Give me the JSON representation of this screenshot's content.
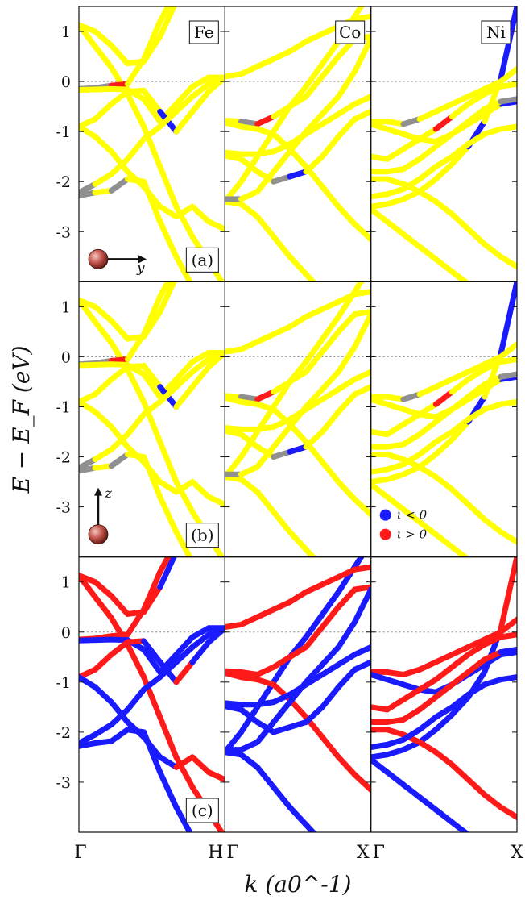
{
  "chart_data": {
    "type": "line",
    "ylabel": "E − E_F (eV)",
    "xlabel": "k (a0^-1)",
    "ylim": [
      -4,
      1.5
    ],
    "yticks": [
      1,
      0,
      -1,
      -2,
      -3
    ],
    "ytick_labels": [
      "1",
      "0",
      "-1",
      "-2",
      "-3"
    ],
    "fermi_level": 0,
    "legend": [
      {
        "label": "ι < 0",
        "color": "#1a1aff"
      },
      {
        "label": "ι > 0",
        "color": "#ff1a1a"
      }
    ],
    "colors": {
      "neutral": "#ffff00",
      "negative": "#1a1aff",
      "positive": "#ff1a1a",
      "gray": "#909090"
    },
    "columns": [
      {
        "element": "Fe",
        "k_start": "Γ",
        "k_end": "H"
      },
      {
        "element": "Co",
        "k_start": "Γ",
        "k_end": "X"
      },
      {
        "element": "Ni",
        "k_start": "Γ",
        "k_end": "X"
      }
    ],
    "rows": [
      {
        "panel": "(a)",
        "magnetization": "y",
        "mode": "texture"
      },
      {
        "panel": "(b)",
        "magnetization": "z",
        "mode": "texture"
      },
      {
        "panel": "(c)",
        "magnetization": "",
        "mode": "spin"
      }
    ],
    "bands": {
      "Fe": [
        {
          "y": [
            1.13,
            0.7,
            0.28,
            -0.25,
            -0.9,
            -1.7,
            -2.5,
            -3.1,
            -3.6,
            -4.1
          ],
          "c": [
            "y",
            "y",
            "y",
            "y",
            "y",
            "y",
            "y",
            "y",
            "y",
            "y"
          ],
          "s": [
            "r",
            "r",
            "r",
            "r",
            "r",
            "r",
            "r",
            "r",
            "r",
            "r"
          ]
        },
        {
          "y": [
            1.13,
            1.0,
            0.72,
            0.36,
            0.4,
            0.9,
            1.6,
            2.2,
            2.8,
            3.4
          ],
          "c": [
            "y",
            "y",
            "y",
            "y",
            "y",
            "y",
            "y",
            "y",
            "y",
            "y"
          ],
          "s": [
            "r",
            "r",
            "r",
            "r",
            "r",
            "b",
            "b",
            "b",
            "b",
            "b"
          ]
        },
        {
          "y": [
            -0.15,
            -0.13,
            -0.08,
            -0.05,
            0.45,
            1.2,
            1.8,
            2.4,
            2.9,
            3.4
          ],
          "c": [
            "g",
            "g",
            "r",
            "y",
            "y",
            "y",
            "y",
            "y",
            "y",
            "y"
          ],
          "s": [
            "r",
            "r",
            "r",
            "r",
            "r",
            "r",
            "r",
            "r",
            "r",
            "r"
          ]
        },
        {
          "y": [
            -0.17,
            -0.16,
            -0.15,
            -0.16,
            -0.35,
            -0.8,
            -0.45,
            -0.1,
            0.08,
            0.08
          ],
          "c": [
            "y",
            "y",
            "y",
            "y",
            "y",
            "y",
            "y",
            "y",
            "y",
            "y"
          ],
          "s": [
            "b",
            "b",
            "b",
            "b",
            "b",
            "b",
            "b",
            "b",
            "b",
            "b"
          ]
        },
        {
          "y": [
            -0.9,
            -0.75,
            -0.45,
            -0.2,
            -0.18,
            -0.6,
            -1.0,
            -0.6,
            -0.2,
            0.08
          ],
          "c": [
            "y",
            "y",
            "y",
            "y",
            "y",
            "b",
            "y",
            "y",
            "y",
            "y"
          ],
          "s": [
            "r",
            "r",
            "r",
            "r",
            "b",
            "b",
            "r",
            "b",
            "b",
            "b"
          ]
        },
        {
          "y": [
            -0.9,
            -1.1,
            -1.4,
            -1.8,
            -2.1,
            -2.5,
            -2.7,
            -2.5,
            -2.8,
            -2.95
          ],
          "c": [
            "y",
            "y",
            "y",
            "y",
            "y",
            "y",
            "y",
            "y",
            "y",
            "y"
          ],
          "s": [
            "b",
            "b",
            "b",
            "b",
            "b",
            "b",
            "r",
            "r",
            "r",
            "r"
          ]
        },
        {
          "y": [
            -2.22,
            -2.05,
            -1.85,
            -1.55,
            -1.15,
            -0.9,
            -0.6,
            -0.3,
            -0.05,
            0.08
          ],
          "c": [
            "g",
            "y",
            "y",
            "y",
            "y",
            "y",
            "y",
            "y",
            "y",
            "y"
          ],
          "s": [
            "b",
            "b",
            "b",
            "b",
            "b",
            "b",
            "b",
            "b",
            "b",
            "b"
          ]
        },
        {
          "y": [
            -2.28,
            -2.22,
            -2.18,
            -1.95,
            -2.0,
            -2.8,
            -3.5,
            -4.1,
            -4.6,
            -5.0
          ],
          "c": [
            "g",
            "y",
            "g",
            "y",
            "y",
            "y",
            "y",
            "y",
            "y",
            "y"
          ],
          "s": [
            "b",
            "b",
            "b",
            "b",
            "b",
            "b",
            "b",
            "b",
            "b",
            "b"
          ]
        }
      ],
      "Co": [
        {
          "y": [
            -2.4,
            -2.0,
            -1.5,
            -1.0,
            -0.5,
            -0.1,
            0.35,
            0.8,
            1.3,
            1.8
          ],
          "c": [
            "y",
            "y",
            "y",
            "y",
            "y",
            "y",
            "y",
            "y",
            "y",
            "y"
          ],
          "s": [
            "b",
            "b",
            "b",
            "b",
            "b",
            "b",
            "b",
            "b",
            "b",
            "b"
          ]
        },
        {
          "y": [
            -2.4,
            -2.45,
            -2.7,
            -3.1,
            -3.5,
            -3.85,
            -4.2,
            -4.6,
            -5.0,
            -5.4
          ],
          "c": [
            "y",
            "y",
            "y",
            "y",
            "y",
            "y",
            "y",
            "y",
            "y",
            "y"
          ],
          "s": [
            "b",
            "b",
            "b",
            "b",
            "b",
            "b",
            "b",
            "b",
            "b",
            "b"
          ]
        },
        {
          "y": [
            0.1,
            0.15,
            0.3,
            0.45,
            0.6,
            0.8,
            0.95,
            1.1,
            1.25,
            1.3
          ],
          "c": [
            "y",
            "y",
            "y",
            "y",
            "y",
            "y",
            "y",
            "y",
            "y",
            "y"
          ],
          "s": [
            "r",
            "r",
            "r",
            "r",
            "r",
            "r",
            "r",
            "r",
            "r",
            "r"
          ]
        },
        {
          "y": [
            -0.78,
            -0.8,
            -0.85,
            -0.7,
            -0.5,
            -0.3,
            0.1,
            0.5,
            0.85,
            0.9
          ],
          "c": [
            "y",
            "g",
            "r",
            "y",
            "y",
            "y",
            "y",
            "y",
            "y",
            "y"
          ],
          "s": [
            "r",
            "r",
            "r",
            "r",
            "r",
            "r",
            "r",
            "r",
            "r",
            "r"
          ]
        },
        {
          "y": [
            -0.82,
            -0.9,
            -0.95,
            -1.05,
            -1.35,
            -1.7,
            -2.1,
            -2.5,
            -2.85,
            -3.15
          ],
          "c": [
            "y",
            "y",
            "y",
            "y",
            "y",
            "y",
            "y",
            "y",
            "y",
            "y"
          ],
          "s": [
            "r",
            "r",
            "r",
            "r",
            "r",
            "r",
            "r",
            "r",
            "r",
            "r"
          ]
        },
        {
          "y": [
            -1.42,
            -1.45,
            -1.45,
            -1.4,
            -1.25,
            -1.05,
            -0.85,
            -0.65,
            -0.45,
            -0.3
          ],
          "c": [
            "y",
            "y",
            "y",
            "y",
            "y",
            "y",
            "y",
            "y",
            "y",
            "y"
          ],
          "s": [
            "b",
            "b",
            "b",
            "b",
            "b",
            "b",
            "b",
            "b",
            "b",
            "b"
          ]
        },
        {
          "y": [
            -1.48,
            -1.55,
            -1.8,
            -2.0,
            -1.9,
            -1.8,
            -1.5,
            -1.1,
            -0.75,
            -0.6
          ],
          "c": [
            "y",
            "y",
            "y",
            "g",
            "b",
            "y",
            "y",
            "y",
            "y",
            "y"
          ],
          "s": [
            "b",
            "b",
            "b",
            "b",
            "b",
            "b",
            "b",
            "b",
            "b",
            "b"
          ]
        },
        {
          "y": [
            -2.35,
            -2.35,
            -2.2,
            -1.8,
            -1.4,
            -1.0,
            -0.65,
            -0.3,
            0.2,
            0.85
          ],
          "c": [
            "g",
            "y",
            "y",
            "y",
            "y",
            "y",
            "y",
            "y",
            "y",
            "y"
          ],
          "s": [
            "b",
            "b",
            "b",
            "b",
            "b",
            "b",
            "b",
            "b",
            "b",
            "b"
          ]
        }
      ],
      "Ni": [
        {
          "y": [
            -2.5,
            -2.45,
            -2.35,
            -2.2,
            -1.95,
            -1.65,
            -1.3,
            -0.8,
            0.05,
            1.5
          ],
          "c": [
            "y",
            "y",
            "y",
            "y",
            "y",
            "y",
            "b",
            "y",
            "b",
            "y"
          ],
          "s": [
            "b",
            "b",
            "b",
            "b",
            "b",
            "b",
            "b",
            "b",
            "r",
            "b"
          ]
        },
        {
          "y": [
            -2.55,
            -2.8,
            -3.05,
            -3.3,
            -3.55,
            -3.8,
            -4.05,
            -4.3,
            -4.55,
            -4.8
          ],
          "c": [
            "y",
            "y",
            "y",
            "y",
            "y",
            "y",
            "y",
            "y",
            "y",
            "y"
          ],
          "s": [
            "b",
            "b",
            "b",
            "b",
            "b",
            "b",
            "b",
            "b",
            "b",
            "b"
          ]
        },
        {
          "y": [
            -0.8,
            -0.8,
            -0.85,
            -0.75,
            -0.6,
            -0.45,
            -0.3,
            -0.15,
            0.0,
            0.25
          ],
          "c": [
            "y",
            "y",
            "g",
            "y",
            "y",
            "y",
            "y",
            "y",
            "y",
            "y"
          ],
          "s": [
            "r",
            "r",
            "r",
            "r",
            "r",
            "r",
            "r",
            "r",
            "r",
            "r"
          ]
        },
        {
          "y": [
            -0.85,
            -0.95,
            -1.05,
            -1.15,
            -1.2,
            -1.05,
            -0.85,
            -0.65,
            -0.45,
            -0.4
          ],
          "c": [
            "y",
            "y",
            "y",
            "y",
            "y",
            "y",
            "y",
            "y",
            "b",
            "b"
          ],
          "s": [
            "b",
            "b",
            "b",
            "b",
            "b",
            "b",
            "b",
            "b",
            "b",
            "b"
          ]
        },
        {
          "y": [
            -1.5,
            -1.55,
            -1.35,
            -1.15,
            -0.95,
            -0.7,
            -0.45,
            -0.25,
            -0.1,
            -0.05
          ],
          "c": [
            "y",
            "y",
            "y",
            "y",
            "r",
            "y",
            "y",
            "y",
            "y",
            "y"
          ],
          "s": [
            "r",
            "r",
            "r",
            "r",
            "r",
            "r",
            "r",
            "r",
            "r",
            "r"
          ]
        },
        {
          "y": [
            -1.8,
            -1.8,
            -1.75,
            -1.55,
            -1.3,
            -1.05,
            -0.8,
            -0.55,
            -0.4,
            -0.35
          ],
          "c": [
            "y",
            "y",
            "y",
            "y",
            "y",
            "y",
            "y",
            "y",
            "g",
            "g"
          ],
          "s": [
            "r",
            "r",
            "r",
            "r",
            "r",
            "r",
            "r",
            "r",
            "b",
            "b"
          ]
        },
        {
          "y": [
            -1.95,
            -1.95,
            -2.05,
            -2.2,
            -2.4,
            -2.65,
            -2.95,
            -3.25,
            -3.5,
            -3.7
          ],
          "c": [
            "y",
            "y",
            "y",
            "y",
            "y",
            "y",
            "y",
            "y",
            "y",
            "y"
          ],
          "s": [
            "r",
            "r",
            "r",
            "r",
            "r",
            "r",
            "r",
            "r",
            "r",
            "r"
          ]
        },
        {
          "y": [
            -2.3,
            -2.25,
            -2.15,
            -1.95,
            -1.7,
            -1.5,
            -1.25,
            -1.05,
            -0.95,
            -0.9
          ],
          "c": [
            "y",
            "y",
            "y",
            "y",
            "y",
            "y",
            "y",
            "y",
            "y",
            "y"
          ],
          "s": [
            "b",
            "b",
            "b",
            "b",
            "b",
            "b",
            "b",
            "b",
            "b",
            "b"
          ]
        }
      ]
    }
  }
}
